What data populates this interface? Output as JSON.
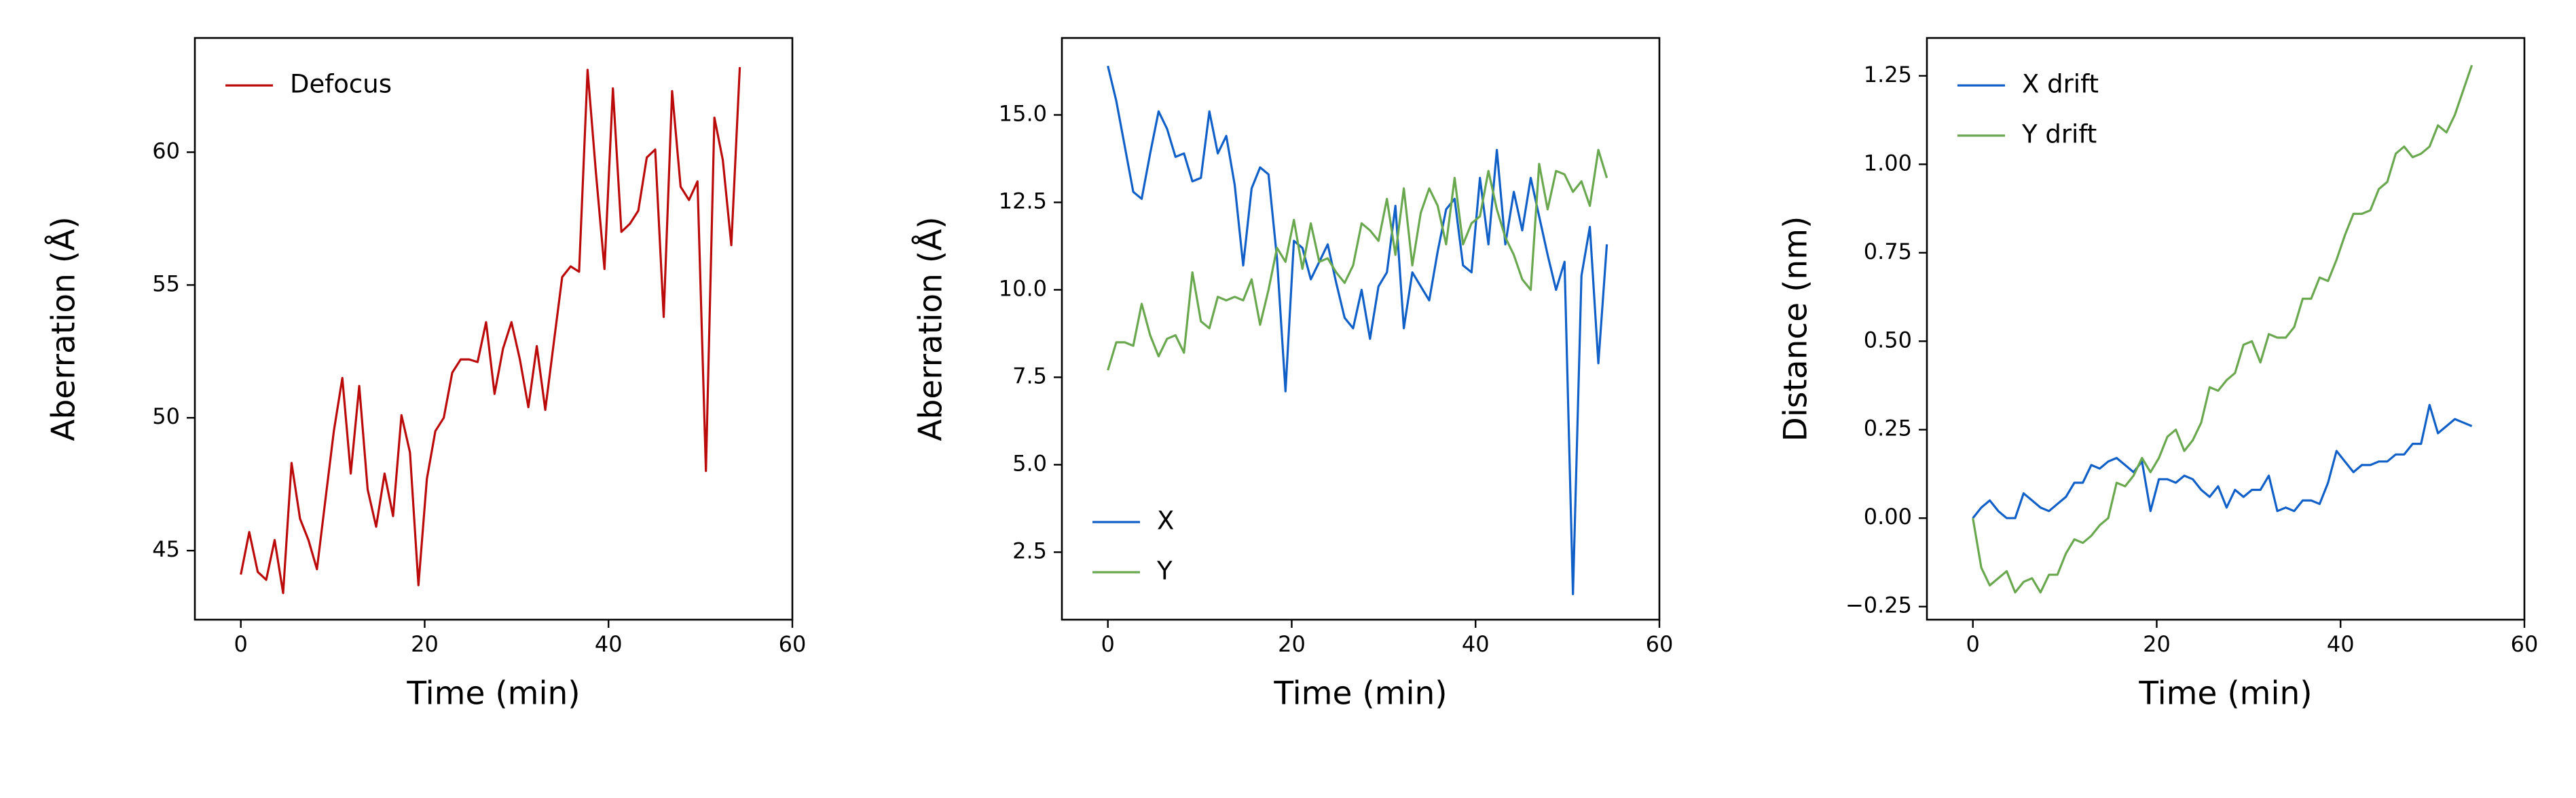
{
  "chart_data": [
    {
      "type": "line",
      "xlabel": "Time (min)",
      "ylabel": "Aberration (Å)",
      "legend": "upper left",
      "xlim": [
        -5,
        60
      ],
      "xticks": [
        0,
        20,
        40,
        60
      ],
      "ylim": [
        42.4,
        64.3
      ],
      "yticks": [
        45,
        50,
        55,
        60
      ],
      "x": [
        0,
        0.92,
        1.84,
        2.76,
        3.68,
        4.6,
        5.52,
        6.44,
        7.36,
        8.28,
        9.2,
        10.12,
        11.04,
        11.96,
        12.88,
        13.8,
        14.72,
        15.64,
        16.56,
        17.48,
        18.4,
        19.32,
        20.24,
        21.16,
        22.08,
        23,
        23.92,
        24.84,
        25.76,
        26.68,
        27.6,
        28.52,
        29.44,
        30.36,
        31.28,
        32.2,
        33.12,
        34.04,
        34.96,
        35.88,
        36.8,
        37.72,
        38.64,
        39.56,
        40.48,
        41.4,
        42.32,
        43.24,
        44.16,
        45.08,
        46,
        46.92,
        47.84,
        48.76,
        49.68,
        50.6,
        51.52,
        52.44,
        53.36,
        54.28
      ],
      "series": [
        {
          "name": "Defocus",
          "color": "#bb0a0a",
          "values": [
            44.1,
            45.7,
            44.2,
            43.9,
            45.4,
            43.4,
            48.3,
            46.2,
            45.4,
            44.3,
            46.9,
            49.5,
            51.5,
            47.9,
            51.2,
            47.3,
            45.9,
            47.9,
            46.3,
            50.1,
            48.7,
            43.7,
            47.7,
            49.5,
            50,
            51.7,
            52.2,
            52.2,
            52.1,
            53.6,
            50.9,
            52.6,
            53.6,
            52.2,
            50.4,
            52.7,
            50.3,
            52.8,
            55.3,
            55.7,
            55.5,
            63.1,
            59.2,
            55.6,
            62.4,
            57,
            57.3,
            57.8,
            59.8,
            60.1,
            53.8,
            62.3,
            58.7,
            58.2,
            58.9,
            48,
            61.3,
            59.7,
            56.5,
            63.2
          ]
        }
      ]
    },
    {
      "type": "line",
      "xlabel": "Time (min)",
      "ylabel": "Aberration (Å)",
      "legend": "lower left",
      "xlim": [
        -5,
        60
      ],
      "xticks": [
        0,
        20,
        40,
        60
      ],
      "ylim": [
        0.57,
        17.2
      ],
      "yticks": [
        2.5,
        {
          "value": 5,
          "label": "5.0"
        },
        7.5,
        {
          "value": 10,
          "label": "10.0"
        },
        12.5,
        {
          "value": 15,
          "label": "15.0"
        }
      ],
      "x": [
        0,
        0.92,
        1.84,
        2.76,
        3.68,
        4.6,
        5.52,
        6.44,
        7.36,
        8.28,
        9.2,
        10.12,
        11.04,
        11.96,
        12.88,
        13.8,
        14.72,
        15.64,
        16.56,
        17.48,
        18.4,
        19.32,
        20.24,
        21.16,
        22.08,
        23,
        23.92,
        24.84,
        25.76,
        26.68,
        27.6,
        28.52,
        29.44,
        30.36,
        31.28,
        32.2,
        33.12,
        34.04,
        34.96,
        35.88,
        36.8,
        37.72,
        38.64,
        39.56,
        40.48,
        41.4,
        42.32,
        43.24,
        44.16,
        45.08,
        46,
        46.92,
        47.84,
        48.76,
        49.68,
        50.6,
        51.52,
        52.44,
        53.36,
        54.28
      ],
      "series": [
        {
          "name": "X",
          "color": "#1060c8",
          "values": [
            16.4,
            15.4,
            14.1,
            12.8,
            12.6,
            13.9,
            15.1,
            14.6,
            13.8,
            13.9,
            13.1,
            13.2,
            15.1,
            13.9,
            14.4,
            13.0,
            10.7,
            12.9,
            13.5,
            13.3,
            10.9,
            7.1,
            11.4,
            11.2,
            10.3,
            10.8,
            11.3,
            10.2,
            9.2,
            8.9,
            10.0,
            8.6,
            10.1,
            10.5,
            12.4,
            8.9,
            10.5,
            10.1,
            9.7,
            11.1,
            12.3,
            12.6,
            10.7,
            10.5,
            13.2,
            11.3,
            14.0,
            11.3,
            12.8,
            11.7,
            13.2,
            12.1,
            11.0,
            10.0,
            10.8,
            1.3,
            10.4,
            11.8,
            7.9,
            11.3
          ]
        },
        {
          "name": "Y",
          "color": "#6aa84f",
          "values": [
            7.7,
            8.5,
            8.5,
            8.4,
            9.6,
            8.7,
            8.1,
            8.6,
            8.7,
            8.2,
            10.5,
            9.1,
            8.9,
            9.8,
            9.7,
            9.8,
            9.7,
            10.3,
            9.0,
            10.0,
            11.2,
            10.8,
            12.0,
            10.6,
            11.9,
            10.8,
            10.9,
            10.5,
            10.2,
            10.7,
            11.9,
            11.7,
            11.4,
            12.6,
            11.0,
            12.9,
            10.7,
            12.2,
            12.9,
            12.4,
            11.3,
            13.2,
            11.3,
            11.9,
            12.1,
            13.4,
            12.3,
            11.5,
            11.0,
            10.3,
            10.0,
            13.6,
            12.3,
            13.4,
            13.3,
            12.8,
            13.1,
            12.4,
            14.0,
            13.2
          ]
        }
      ]
    },
    {
      "type": "line",
      "xlabel": "Time (min)",
      "ylabel": "Distance (nm)",
      "legend": "upper left",
      "xlim": [
        -5,
        60
      ],
      "xticks": [
        0,
        20,
        40,
        60
      ],
      "ylim": [
        -0.287,
        1.357
      ],
      "yticks": [
        {
          "value": -0.25,
          "label": "−0.25"
        },
        {
          "value": 0,
          "label": "0.00"
        },
        0.25,
        {
          "value": 0.5,
          "label": "0.50"
        },
        0.75,
        {
          "value": 1,
          "label": "1.00"
        },
        1.25
      ],
      "x": [
        0,
        0.92,
        1.84,
        2.76,
        3.68,
        4.6,
        5.52,
        6.44,
        7.36,
        8.28,
        9.2,
        10.12,
        11.04,
        11.96,
        12.88,
        13.8,
        14.72,
        15.64,
        16.56,
        17.48,
        18.4,
        19.32,
        20.24,
        21.16,
        22.08,
        23,
        23.92,
        24.84,
        25.76,
        26.68,
        27.6,
        28.52,
        29.44,
        30.36,
        31.28,
        32.2,
        33.12,
        34.04,
        34.96,
        35.88,
        36.8,
        37.72,
        38.64,
        39.56,
        40.48,
        41.4,
        42.32,
        43.24,
        44.16,
        45.08,
        46,
        46.92,
        47.84,
        48.76,
        49.68,
        50.6,
        51.52,
        52.44,
        53.36,
        54.28
      ],
      "series": [
        {
          "name": "X drift",
          "color": "#1060c8",
          "values": [
            0,
            0.03,
            0.05,
            0.02,
            0,
            0,
            0.07,
            0.05,
            0.03,
            0.02,
            0.04,
            0.06,
            0.1,
            0.1,
            0.15,
            0.14,
            0.16,
            0.17,
            0.15,
            0.13,
            0.16,
            0.02,
            0.11,
            0.11,
            0.1,
            0.12,
            0.11,
            0.08,
            0.06,
            0.09,
            0.03,
            0.08,
            0.06,
            0.08,
            0.08,
            0.12,
            0.02,
            0.03,
            0.02,
            0.05,
            0.05,
            0.04,
            0.1,
            0.19,
            0.16,
            0.13,
            0.15,
            0.15,
            0.16,
            0.16,
            0.18,
            0.18,
            0.21,
            0.21,
            0.32,
            0.24,
            0.26,
            0.28,
            0.27,
            0.26
          ]
        },
        {
          "name": "Y drift",
          "color": "#6aa84f",
          "values": [
            0,
            -0.14,
            -0.19,
            -0.17,
            -0.15,
            -0.21,
            -0.18,
            -0.17,
            -0.21,
            -0.16,
            -0.16,
            -0.1,
            -0.06,
            -0.07,
            -0.05,
            -0.02,
            0,
            0.1,
            0.09,
            0.12,
            0.17,
            0.13,
            0.17,
            0.23,
            0.25,
            0.19,
            0.22,
            0.27,
            0.37,
            0.36,
            0.39,
            0.41,
            0.49,
            0.5,
            0.44,
            0.52,
            0.51,
            0.51,
            0.54,
            0.62,
            0.62,
            0.68,
            0.67,
            0.73,
            0.8,
            0.86,
            0.86,
            0.87,
            0.93,
            0.95,
            1.03,
            1.05,
            1.02,
            1.03,
            1.05,
            1.11,
            1.09,
            1.14,
            1.21,
            1.28
          ]
        }
      ]
    }
  ]
}
